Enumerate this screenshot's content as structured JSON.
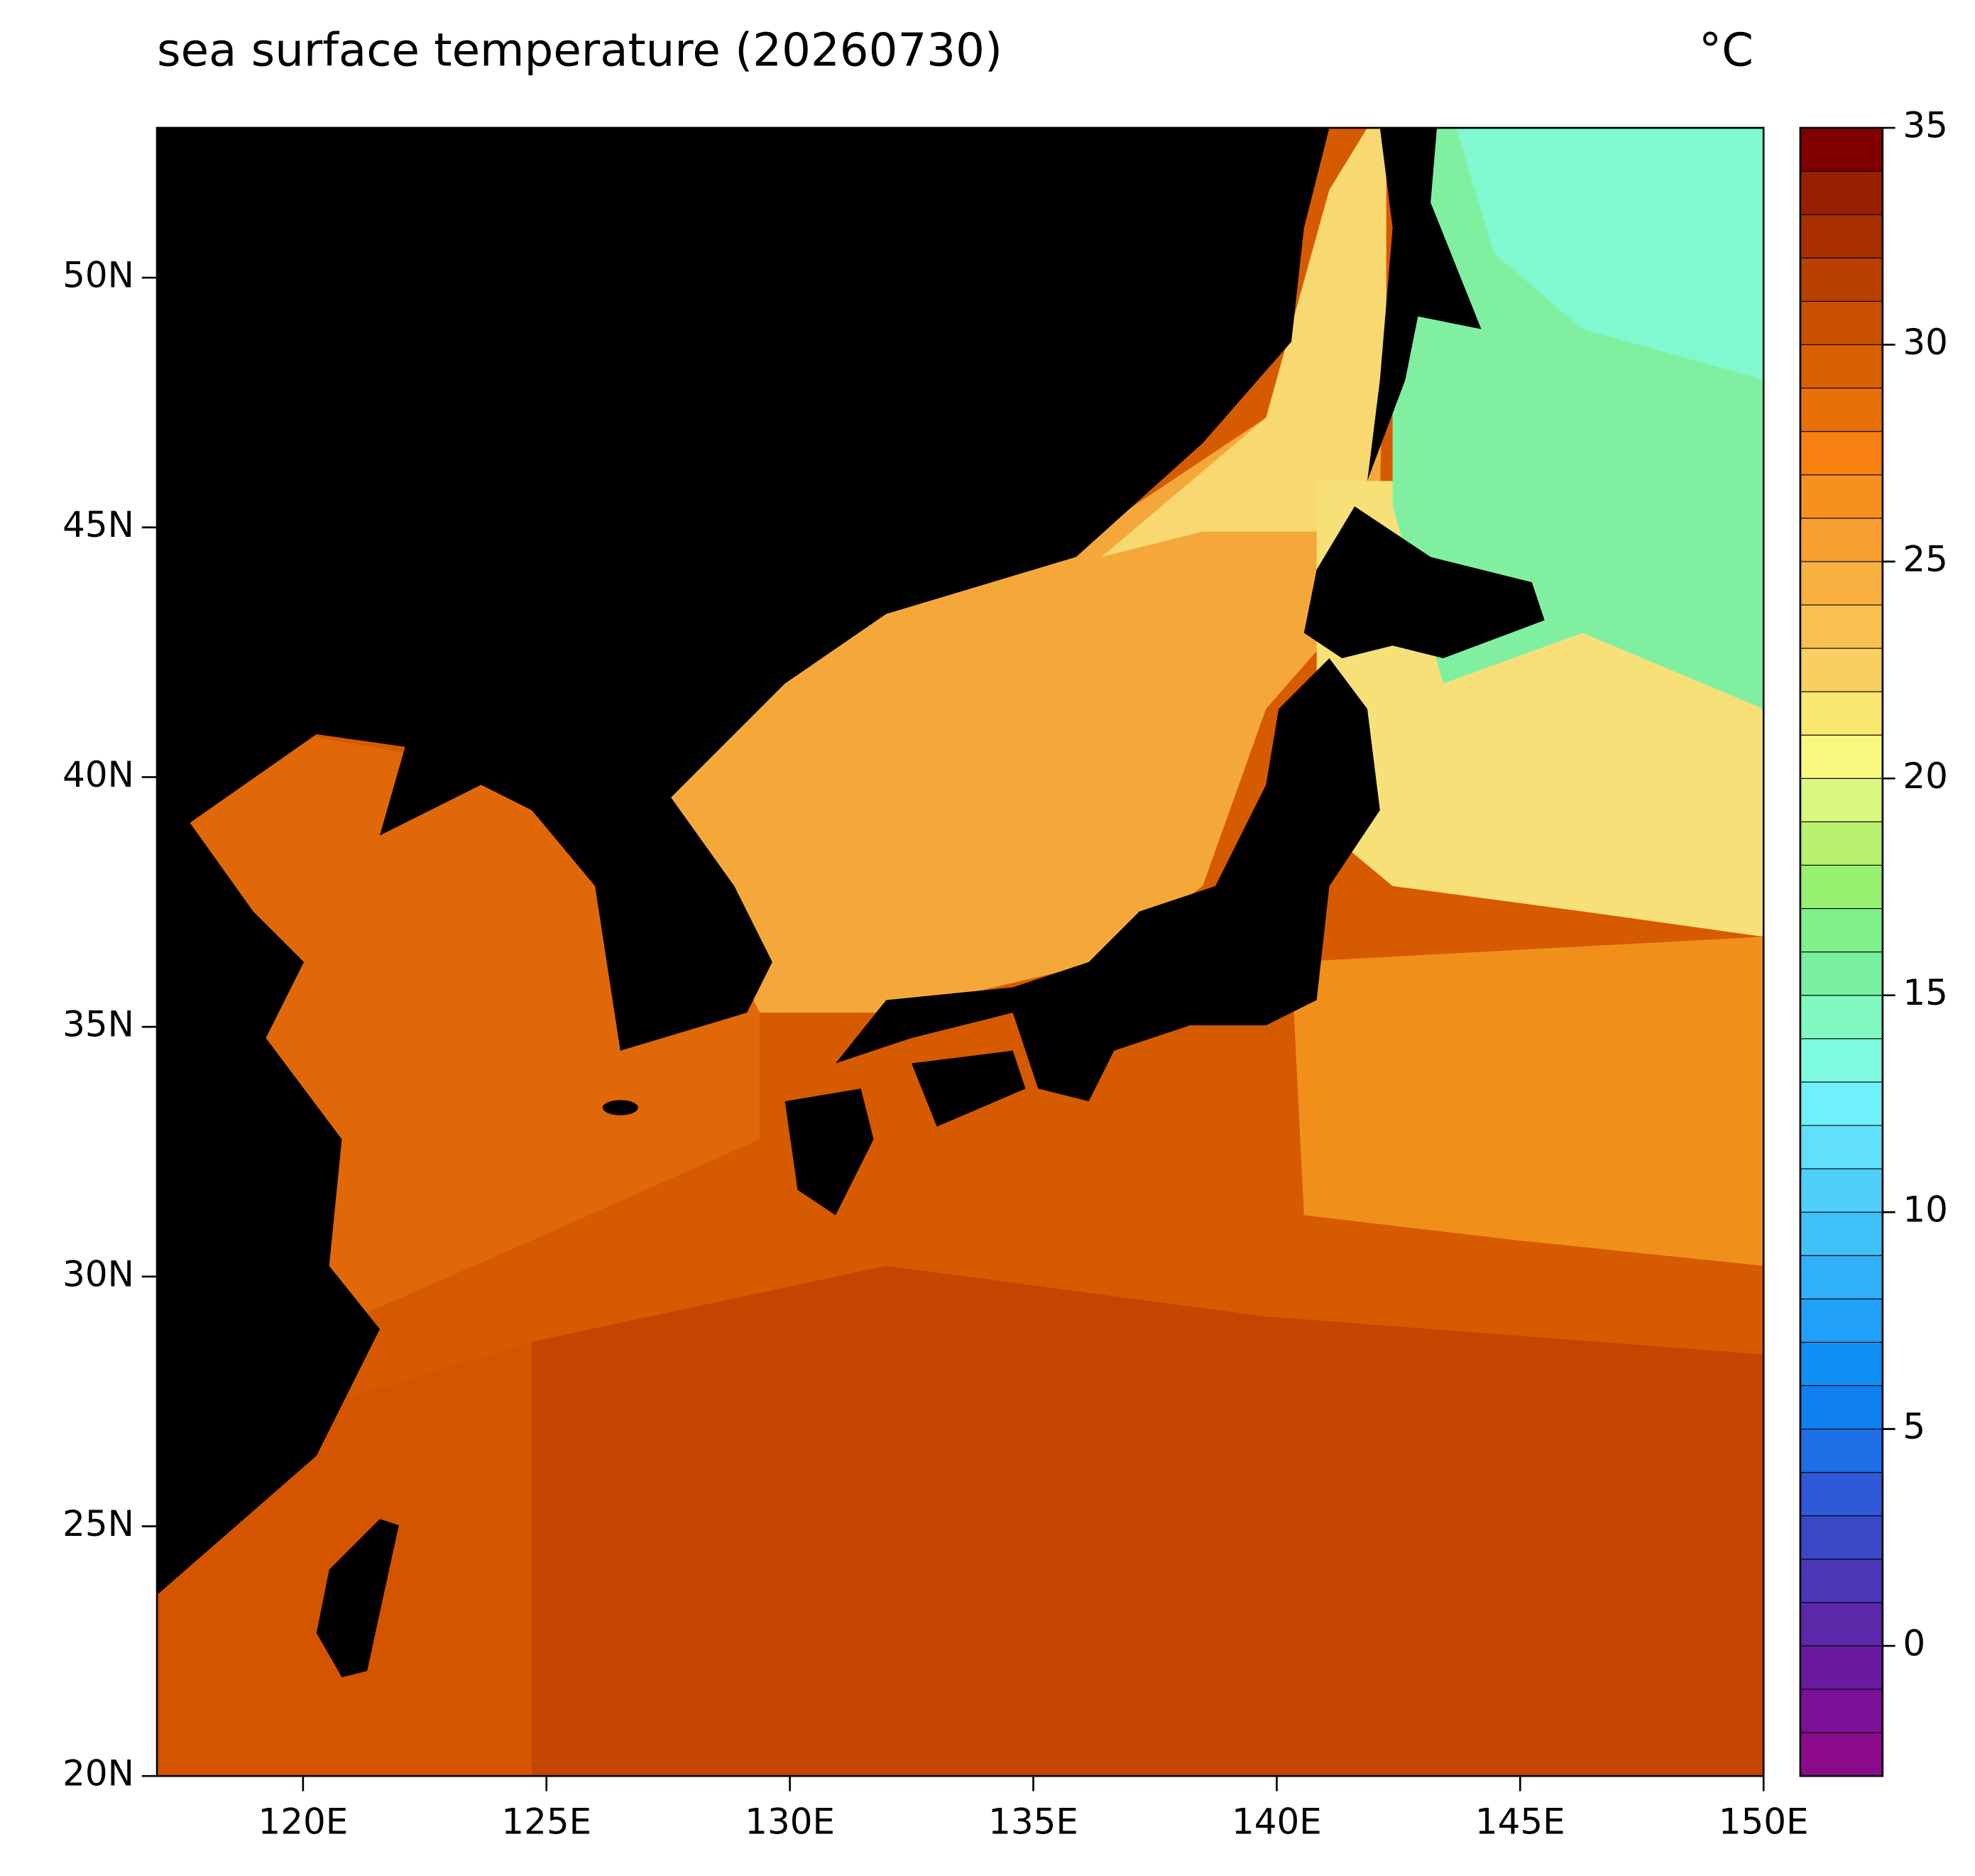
{
  "title": "sea surface temperature (20260730)",
  "unit": "°C",
  "map": {
    "xlim": [
      117,
      150
    ],
    "ylim": [
      20,
      53
    ],
    "xticks": [
      {
        "value": 120,
        "label": "120E"
      },
      {
        "value": 125,
        "label": "125E"
      },
      {
        "value": 130,
        "label": "130E"
      },
      {
        "value": 135,
        "label": "135E"
      },
      {
        "value": 140,
        "label": "140E"
      },
      {
        "value": 145,
        "label": "145E"
      },
      {
        "value": 150,
        "label": "150E"
      }
    ],
    "yticks": [
      {
        "value": 20,
        "label": "20N"
      },
      {
        "value": 25,
        "label": "25N"
      },
      {
        "value": 30,
        "label": "30N"
      },
      {
        "value": 35,
        "label": "35N"
      },
      {
        "value": 40,
        "label": "40N"
      },
      {
        "value": 45,
        "label": "45N"
      },
      {
        "value": 50,
        "label": "50N"
      }
    ]
  },
  "colorbar": {
    "clim": [
      -3,
      35
    ],
    "ticks": [
      0,
      5,
      10,
      15,
      20,
      25,
      30,
      35
    ],
    "colors": [
      "#8b0a8b",
      "#7a1196",
      "#6a1a9e",
      "#5a28a8",
      "#4a37b8",
      "#3a48c8",
      "#2e5ad8",
      "#1f6ee6",
      "#1080f0",
      "#1090f5",
      "#20a0f8",
      "#30b0f8",
      "#40c0f8",
      "#50d0f8",
      "#60e0fa",
      "#70f0fa",
      "#80fae0",
      "#80f8c0",
      "#78f0a0",
      "#80f088",
      "#98f070",
      "#b8f070",
      "#d8f880",
      "#f8f880",
      "#f8e870",
      "#f8d060",
      "#f8c050",
      "#f8b040",
      "#f8a030",
      "#f89020",
      "#f88010",
      "#e87008",
      "#d86000",
      "#c85000",
      "#b84000",
      "#a83000",
      "#982000",
      "#800000"
    ]
  }
}
